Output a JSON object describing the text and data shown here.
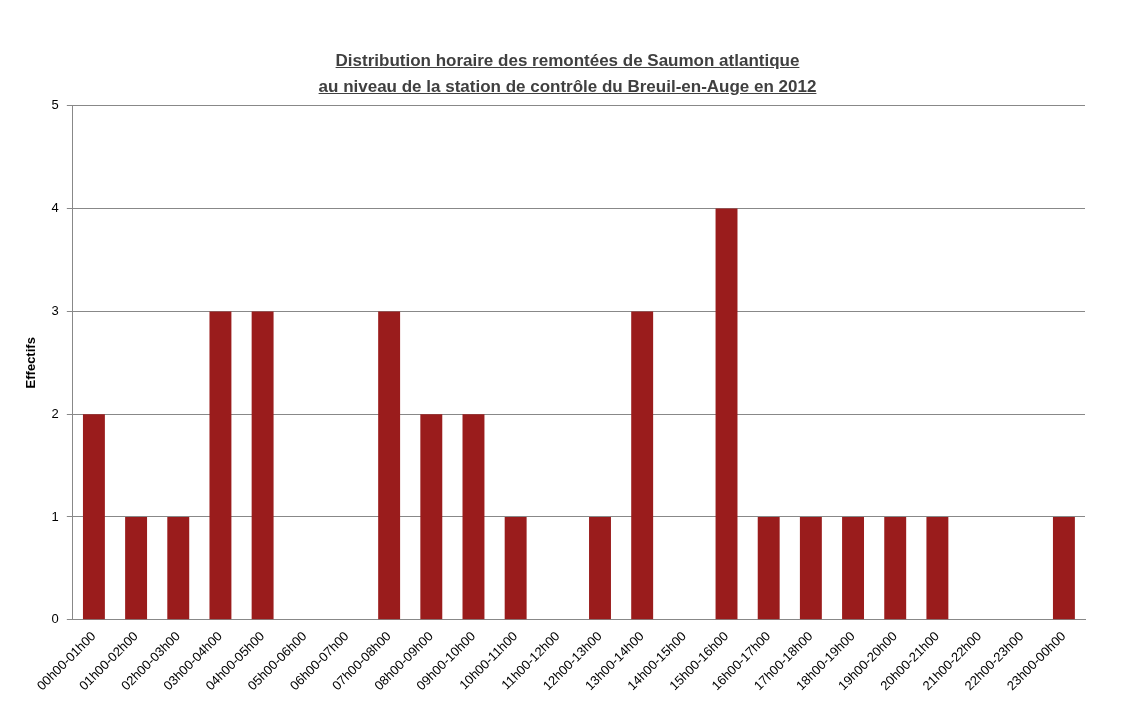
{
  "chart_data": {
    "type": "bar",
    "title": "Distribution horaire des remontées de Saumon atlantique\nau niveau de la station de contrôle du Breuil-en-Auge en 2012",
    "ylabel": "Effectifs",
    "categories": [
      "00h00-01h00",
      "01h00-02h00",
      "02h00-03h00",
      "03h00-04h00",
      "04h00-05h00",
      "05h00-06h00",
      "06h00-07h00",
      "07h00-08h00",
      "08h00-09h00",
      "09h00-10h00",
      "10h00-11h00",
      "11h00-12h00",
      "12h00-13h00",
      "13h00-14h00",
      "14h00-15h00",
      "15h00-16h00",
      "16h00-17h00",
      "17h00-18h00",
      "18h00-19h00",
      "19h00-20h00",
      "20h00-21h00",
      "21h00-22h00",
      "22h00-23h00",
      "23h00-00h00"
    ],
    "values": [
      2,
      1,
      1,
      3,
      3,
      0,
      0,
      3,
      2,
      2,
      1,
      0,
      1,
      3,
      0,
      4,
      1,
      1,
      1,
      1,
      1,
      0,
      0,
      1
    ],
    "color": "#9a1c1c",
    "ylim": [
      0,
      5
    ],
    "yticks": [
      0,
      1,
      2,
      3,
      4,
      5
    ],
    "grid": "y",
    "legend": false
  }
}
